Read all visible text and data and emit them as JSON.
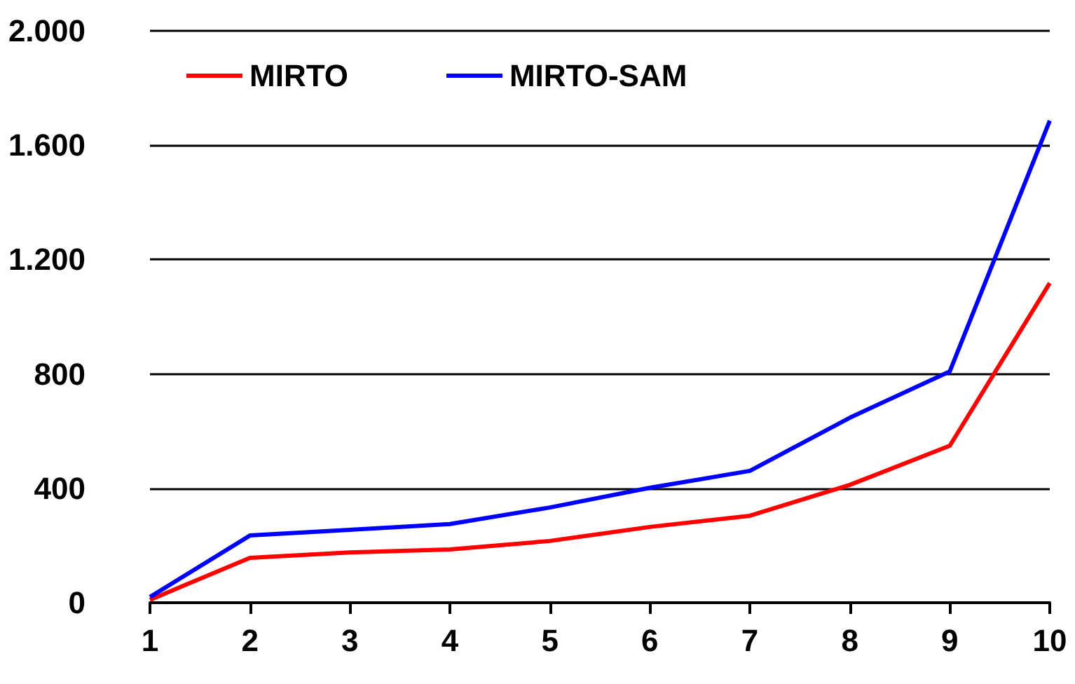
{
  "chart_data": {
    "type": "line",
    "categories": [
      "1",
      "2",
      "3",
      "4",
      "5",
      "6",
      "7",
      "8",
      "9",
      "10"
    ],
    "series": [
      {
        "name": "MIRTO",
        "color": "#ff0000",
        "values": [
          10,
          157,
          176,
          186,
          216,
          265,
          304,
          412,
          549,
          1118
        ]
      },
      {
        "name": "MIRTO-SAM",
        "color": "#0000ff",
        "values": [
          20,
          235,
          255,
          275,
          333,
          402,
          461,
          647,
          809,
          1686
        ]
      }
    ],
    "ylim": [
      0,
      2000
    ],
    "yticks": [
      {
        "value": 0,
        "label": "0"
      },
      {
        "value": 400,
        "label": "400"
      },
      {
        "value": 800,
        "label": "800"
      },
      {
        "value": 1200,
        "label": "1.200"
      },
      {
        "value": 1600,
        "label": "1.600"
      },
      {
        "value": 2000,
        "label": "2.000"
      }
    ],
    "grid": "y",
    "legend": "top left",
    "marker": "none",
    "line_style": "solid"
  }
}
